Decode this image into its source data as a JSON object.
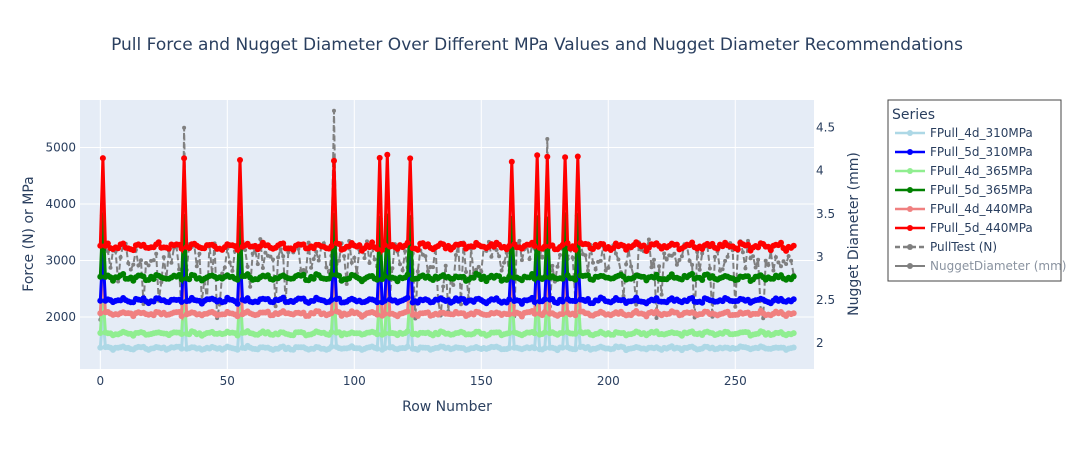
{
  "chart_data": {
    "type": "line",
    "title": "Pull Force and Nugget Diameter Over Different MPa Values and Nugget Diameter Recommendations",
    "xlabel": "Row Number",
    "ylabel": "Force (N) or MPa",
    "y2label": "Nugget Diameter (mm)",
    "xlim": [
      -8,
      281
    ],
    "ylim": [
      1080,
      5840
    ],
    "y2lim": [
      1.7,
      4.82
    ],
    "x_ticks": [
      0,
      50,
      100,
      150,
      200,
      250
    ],
    "y_ticks": [
      2000,
      3000,
      4000,
      5000
    ],
    "y2_ticks": [
      2,
      2.5,
      3,
      3.5,
      4,
      4.5
    ],
    "grid": true,
    "legend_title": "Series",
    "legend_placement": "right",
    "n_rows": 274,
    "spike_rows": [
      1,
      33,
      55,
      92,
      110,
      113,
      122,
      162,
      172,
      176,
      183,
      188
    ],
    "series": [
      {
        "name": "FPull_4d_310MPa",
        "color": "#add8e6",
        "marker": "dot",
        "base": 1450,
        "spike": 2050,
        "axis": "y"
      },
      {
        "name": "FPull_5d_310MPa",
        "color": "#0000ff",
        "marker": "dot",
        "base": 2290,
        "spike": 3200,
        "axis": "y"
      },
      {
        "name": "FPull_4d_365MPa",
        "color": "#90ee90",
        "marker": "dot",
        "base": 1710,
        "spike": 2420,
        "axis": "y"
      },
      {
        "name": "FPull_5d_365MPa",
        "color": "#008000",
        "marker": "dot",
        "base": 2700,
        "spike": 3780,
        "axis": "y"
      },
      {
        "name": "FPull_4d_440MPa",
        "color": "#f08080",
        "marker": "dot",
        "base": 2060,
        "spike": 2890,
        "axis": "y"
      },
      {
        "name": "FPull_5d_440MPa",
        "color": "#ff0000",
        "marker": "dot",
        "base": 3250,
        "spike": 4800,
        "axis": "y"
      },
      {
        "name": "PullTest (N)",
        "color": "#808080",
        "marker": "dot",
        "dash": "dash",
        "range": [
          1950,
          3400
        ],
        "axis": "y",
        "peaks": [
          {
            "x": 33,
            "y": 5350
          },
          {
            "x": 92,
            "y": 5650
          },
          {
            "x": 176,
            "y": 5150
          },
          {
            "x": 1,
            "y": 4000
          }
        ]
      },
      {
        "name": "NuggetDiameter (mm)",
        "color": "#808080",
        "marker": "dot",
        "axis": "y2",
        "legend_dim": true
      }
    ]
  }
}
